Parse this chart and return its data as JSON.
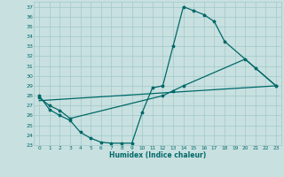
{
  "xlabel": "Humidex (Indice chaleur)",
  "bg_color": "#c8e0e0",
  "grid_color": "#a0c8c8",
  "line_color": "#006868",
  "xlim": [
    -0.5,
    23.5
  ],
  "ylim": [
    23,
    37.5
  ],
  "xticks": [
    0,
    1,
    2,
    3,
    4,
    5,
    6,
    7,
    8,
    9,
    10,
    11,
    12,
    13,
    14,
    15,
    16,
    17,
    18,
    19,
    20,
    21,
    22,
    23
  ],
  "yticks": [
    23,
    24,
    25,
    26,
    27,
    28,
    29,
    30,
    31,
    32,
    33,
    34,
    35,
    36,
    37
  ],
  "curve1_x": [
    0,
    1,
    2,
    3,
    4,
    5,
    6,
    7,
    8,
    9,
    10,
    11,
    12,
    13,
    14,
    15,
    16,
    17,
    18,
    23
  ],
  "curve1_y": [
    28.0,
    26.6,
    26.0,
    25.5,
    24.3,
    23.7,
    23.3,
    23.2,
    23.2,
    23.2,
    26.3,
    28.8,
    29.0,
    33.0,
    37.0,
    36.6,
    36.2,
    35.5,
    33.5,
    29.0
  ],
  "curve2_x": [
    0,
    1,
    2,
    3,
    12,
    13,
    14,
    20,
    21,
    23
  ],
  "curve2_y": [
    27.8,
    27.0,
    26.5,
    25.7,
    28.0,
    28.5,
    29.0,
    31.7,
    30.8,
    29.0
  ],
  "curve3_x": [
    0,
    23
  ],
  "curve3_y": [
    27.5,
    29.0
  ],
  "marker": "*",
  "marker_size": 2.5,
  "linewidth": 0.9
}
